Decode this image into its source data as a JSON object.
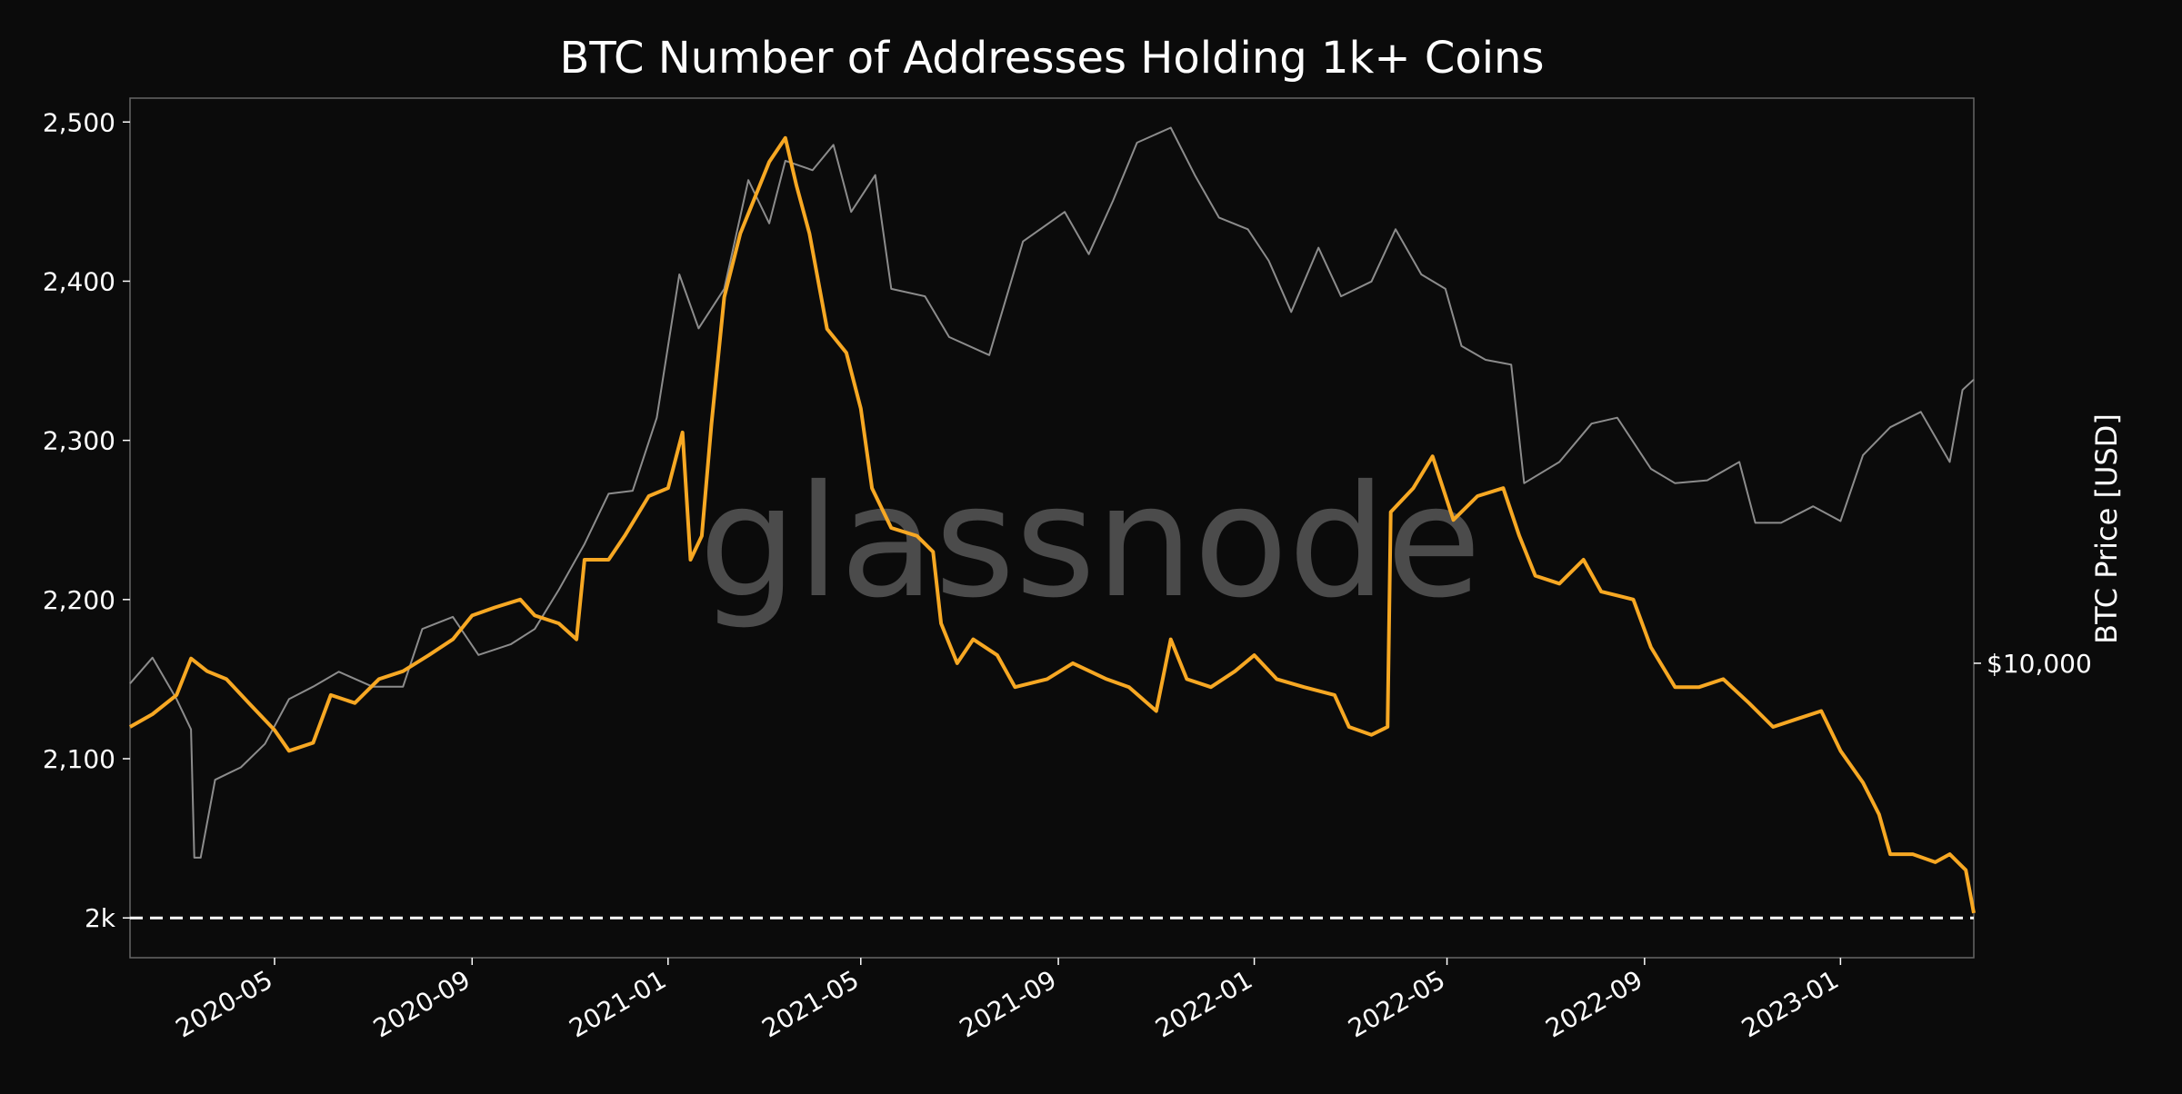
{
  "chart_data": {
    "type": "line",
    "title": "BTC Number of Addresses Holding 1k+ Coins",
    "xlabel": "",
    "ylabel": "",
    "y2label": "BTC Price [USD]",
    "ylim": [
      1975,
      2515
    ],
    "y_ticks": [
      {
        "value": 2000,
        "label": "2k"
      },
      {
        "value": 2100,
        "label": "2,100"
      },
      {
        "value": 2200,
        "label": "2,200"
      },
      {
        "value": 2300,
        "label": "2,300"
      },
      {
        "value": 2400,
        "label": "2,400"
      },
      {
        "value": 2500,
        "label": "2,500"
      }
    ],
    "y2_scale": "log",
    "y2lim": [
      3500,
      75000
    ],
    "y2_ticks": [
      {
        "value": 10000,
        "label": "$10,000"
      }
    ],
    "xlim": [
      "2020-02-01",
      "2023-03-25"
    ],
    "x_ticks": [
      "2020-05",
      "2020-09",
      "2021-01",
      "2021-05",
      "2021-09",
      "2022-01",
      "2022-05",
      "2022-09",
      "2023-01"
    ],
    "grid": false,
    "watermark": "glassnode",
    "reference_line": {
      "value": 2000,
      "style": "dashed",
      "color": "#ffffff"
    },
    "colors": {
      "background": "#0b0b0b",
      "addresses": "#f7a823",
      "price": "#8c8c8c",
      "frame": "#666666"
    },
    "series": [
      {
        "axis": "left",
        "values": [
          {
            "x": "2020-02-01",
            "y": 2120
          },
          {
            "x": "2020-02-15",
            "y": 2128
          },
          {
            "x": "2020-03-01",
            "y": 2140
          },
          {
            "x": "2020-03-10",
            "y": 2163
          },
          {
            "x": "2020-03-20",
            "y": 2155
          },
          {
            "x": "2020-04-01",
            "y": 2150
          },
          {
            "x": "2020-04-15",
            "y": 2135
          },
          {
            "x": "2020-05-01",
            "y": 2118
          },
          {
            "x": "2020-05-10",
            "y": 2105
          },
          {
            "x": "2020-05-25",
            "y": 2110
          },
          {
            "x": "2020-06-05",
            "y": 2140
          },
          {
            "x": "2020-06-20",
            "y": 2135
          },
          {
            "x": "2020-07-05",
            "y": 2150
          },
          {
            "x": "2020-07-20",
            "y": 2155
          },
          {
            "x": "2020-08-05",
            "y": 2165
          },
          {
            "x": "2020-08-20",
            "y": 2175
          },
          {
            "x": "2020-09-01",
            "y": 2190
          },
          {
            "x": "2020-09-15",
            "y": 2195
          },
          {
            "x": "2020-10-01",
            "y": 2200
          },
          {
            "x": "2020-10-10",
            "y": 2190
          },
          {
            "x": "2020-10-25",
            "y": 2185
          },
          {
            "x": "2020-11-05",
            "y": 2175
          },
          {
            "x": "2020-11-10",
            "y": 2225
          },
          {
            "x": "2020-11-25",
            "y": 2225
          },
          {
            "x": "2020-12-05",
            "y": 2240
          },
          {
            "x": "2020-12-20",
            "y": 2265
          },
          {
            "x": "2021-01-01",
            "y": 2270
          },
          {
            "x": "2021-01-10",
            "y": 2305
          },
          {
            "x": "2021-01-15",
            "y": 2225
          },
          {
            "x": "2021-01-22",
            "y": 2240
          },
          {
            "x": "2021-01-28",
            "y": 2310
          },
          {
            "x": "2021-02-05",
            "y": 2390
          },
          {
            "x": "2021-02-15",
            "y": 2430
          },
          {
            "x": "2021-02-25",
            "y": 2455
          },
          {
            "x": "2021-03-05",
            "y": 2475
          },
          {
            "x": "2021-03-15",
            "y": 2490
          },
          {
            "x": "2021-03-22",
            "y": 2460
          },
          {
            "x": "2021-03-30",
            "y": 2430
          },
          {
            "x": "2021-04-10",
            "y": 2370
          },
          {
            "x": "2021-04-22",
            "y": 2355
          },
          {
            "x": "2021-05-01",
            "y": 2320
          },
          {
            "x": "2021-05-08",
            "y": 2270
          },
          {
            "x": "2021-05-20",
            "y": 2245
          },
          {
            "x": "2021-06-05",
            "y": 2240
          },
          {
            "x": "2021-06-15",
            "y": 2230
          },
          {
            "x": "2021-06-20",
            "y": 2185
          },
          {
            "x": "2021-06-30",
            "y": 2160
          },
          {
            "x": "2021-07-10",
            "y": 2175
          },
          {
            "x": "2021-07-25",
            "y": 2165
          },
          {
            "x": "2021-08-05",
            "y": 2145
          },
          {
            "x": "2021-08-25",
            "y": 2150
          },
          {
            "x": "2021-09-10",
            "y": 2160
          },
          {
            "x": "2021-10-01",
            "y": 2150
          },
          {
            "x": "2021-10-15",
            "y": 2145
          },
          {
            "x": "2021-11-01",
            "y": 2130
          },
          {
            "x": "2021-11-10",
            "y": 2175
          },
          {
            "x": "2021-11-20",
            "y": 2150
          },
          {
            "x": "2021-12-05",
            "y": 2145
          },
          {
            "x": "2021-12-20",
            "y": 2155
          },
          {
            "x": "2022-01-01",
            "y": 2165
          },
          {
            "x": "2022-01-15",
            "y": 2150
          },
          {
            "x": "2022-02-01",
            "y": 2145
          },
          {
            "x": "2022-02-20",
            "y": 2140
          },
          {
            "x": "2022-03-01",
            "y": 2120
          },
          {
            "x": "2022-03-15",
            "y": 2115
          },
          {
            "x": "2022-03-25",
            "y": 2120
          },
          {
            "x": "2022-03-27",
            "y": 2255
          },
          {
            "x": "2022-04-10",
            "y": 2270
          },
          {
            "x": "2022-04-22",
            "y": 2290
          },
          {
            "x": "2022-05-05",
            "y": 2250
          },
          {
            "x": "2022-05-20",
            "y": 2265
          },
          {
            "x": "2022-06-05",
            "y": 2270
          },
          {
            "x": "2022-06-15",
            "y": 2240
          },
          {
            "x": "2022-06-25",
            "y": 2215
          },
          {
            "x": "2022-07-10",
            "y": 2210
          },
          {
            "x": "2022-07-25",
            "y": 2225
          },
          {
            "x": "2022-08-05",
            "y": 2205
          },
          {
            "x": "2022-08-25",
            "y": 2200
          },
          {
            "x": "2022-09-05",
            "y": 2170
          },
          {
            "x": "2022-09-20",
            "y": 2145
          },
          {
            "x": "2022-10-05",
            "y": 2145
          },
          {
            "x": "2022-10-20",
            "y": 2150
          },
          {
            "x": "2022-11-05",
            "y": 2135
          },
          {
            "x": "2022-11-20",
            "y": 2120
          },
          {
            "x": "2022-12-05",
            "y": 2125
          },
          {
            "x": "2022-12-20",
            "y": 2130
          },
          {
            "x": "2023-01-01",
            "y": 2105
          },
          {
            "x": "2023-01-15",
            "y": 2085
          },
          {
            "x": "2023-01-25",
            "y": 2065
          },
          {
            "x": "2023-02-01",
            "y": 2040
          },
          {
            "x": "2023-02-15",
            "y": 2040
          },
          {
            "x": "2023-03-01",
            "y": 2035
          },
          {
            "x": "2023-03-10",
            "y": 2040
          },
          {
            "x": "2023-03-20",
            "y": 2030
          },
          {
            "x": "2023-03-25",
            "y": 2003
          }
        ]
      },
      {
        "axis": "right",
        "values": [
          {
            "x": "2020-02-01",
            "y": 9300
          },
          {
            "x": "2020-02-15",
            "y": 10200
          },
          {
            "x": "2020-03-01",
            "y": 8800
          },
          {
            "x": "2020-03-10",
            "y": 7900
          },
          {
            "x": "2020-03-12",
            "y": 5000
          },
          {
            "x": "2020-03-16",
            "y": 5000
          },
          {
            "x": "2020-03-25",
            "y": 6600
          },
          {
            "x": "2020-04-10",
            "y": 6900
          },
          {
            "x": "2020-04-25",
            "y": 7500
          },
          {
            "x": "2020-05-10",
            "y": 8800
          },
          {
            "x": "2020-05-25",
            "y": 9200
          },
          {
            "x": "2020-06-10",
            "y": 9700
          },
          {
            "x": "2020-07-01",
            "y": 9200
          },
          {
            "x": "2020-07-20",
            "y": 9200
          },
          {
            "x": "2020-08-01",
            "y": 11300
          },
          {
            "x": "2020-08-20",
            "y": 11800
          },
          {
            "x": "2020-09-05",
            "y": 10300
          },
          {
            "x": "2020-09-25",
            "y": 10700
          },
          {
            "x": "2020-10-10",
            "y": 11300
          },
          {
            "x": "2020-10-25",
            "y": 13000
          },
          {
            "x": "2020-11-10",
            "y": 15300
          },
          {
            "x": "2020-11-25",
            "y": 18300
          },
          {
            "x": "2020-12-10",
            "y": 18500
          },
          {
            "x": "2020-12-25",
            "y": 24000
          },
          {
            "x": "2021-01-08",
            "y": 40000
          },
          {
            "x": "2021-01-20",
            "y": 33000
          },
          {
            "x": "2021-02-05",
            "y": 38000
          },
          {
            "x": "2021-02-20",
            "y": 56000
          },
          {
            "x": "2021-03-05",
            "y": 48000
          },
          {
            "x": "2021-03-15",
            "y": 60000
          },
          {
            "x": "2021-04-01",
            "y": 58000
          },
          {
            "x": "2021-04-14",
            "y": 63500
          },
          {
            "x": "2021-04-25",
            "y": 50000
          },
          {
            "x": "2021-05-10",
            "y": 57000
          },
          {
            "x": "2021-05-20",
            "y": 38000
          },
          {
            "x": "2021-06-10",
            "y": 37000
          },
          {
            "x": "2021-06-25",
            "y": 32000
          },
          {
            "x": "2021-07-20",
            "y": 30000
          },
          {
            "x": "2021-08-10",
            "y": 45000
          },
          {
            "x": "2021-09-05",
            "y": 50000
          },
          {
            "x": "2021-09-20",
            "y": 43000
          },
          {
            "x": "2021-10-05",
            "y": 52000
          },
          {
            "x": "2021-10-20",
            "y": 64000
          },
          {
            "x": "2021-11-10",
            "y": 67500
          },
          {
            "x": "2021-11-25",
            "y": 57000
          },
          {
            "x": "2021-12-10",
            "y": 49000
          },
          {
            "x": "2021-12-28",
            "y": 47000
          },
          {
            "x": "2022-01-10",
            "y": 42000
          },
          {
            "x": "2022-01-24",
            "y": 35000
          },
          {
            "x": "2022-02-10",
            "y": 44000
          },
          {
            "x": "2022-02-24",
            "y": 37000
          },
          {
            "x": "2022-03-15",
            "y": 39000
          },
          {
            "x": "2022-03-30",
            "y": 47000
          },
          {
            "x": "2022-04-15",
            "y": 40000
          },
          {
            "x": "2022-04-30",
            "y": 38000
          },
          {
            "x": "2022-05-10",
            "y": 31000
          },
          {
            "x": "2022-05-25",
            "y": 29500
          },
          {
            "x": "2022-06-10",
            "y": 29000
          },
          {
            "x": "2022-06-18",
            "y": 19000
          },
          {
            "x": "2022-07-10",
            "y": 20500
          },
          {
            "x": "2022-07-30",
            "y": 23500
          },
          {
            "x": "2022-08-15",
            "y": 24000
          },
          {
            "x": "2022-09-05",
            "y": 20000
          },
          {
            "x": "2022-09-20",
            "y": 19000
          },
          {
            "x": "2022-10-10",
            "y": 19200
          },
          {
            "x": "2022-10-30",
            "y": 20500
          },
          {
            "x": "2022-11-09",
            "y": 16500
          },
          {
            "x": "2022-11-25",
            "y": 16500
          },
          {
            "x": "2022-12-15",
            "y": 17500
          },
          {
            "x": "2023-01-01",
            "y": 16600
          },
          {
            "x": "2023-01-15",
            "y": 21000
          },
          {
            "x": "2023-02-01",
            "y": 23200
          },
          {
            "x": "2023-02-20",
            "y": 24500
          },
          {
            "x": "2023-03-10",
            "y": 20500
          },
          {
            "x": "2023-03-18",
            "y": 26500
          },
          {
            "x": "2023-03-25",
            "y": 27500
          }
        ]
      }
    ]
  }
}
